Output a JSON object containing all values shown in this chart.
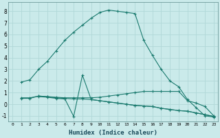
{
  "line1_x": [
    1,
    2,
    3,
    4,
    5,
    6,
    7,
    8,
    9,
    10,
    11,
    12,
    13,
    14,
    15,
    16,
    17,
    18,
    19,
    20,
    21,
    22,
    23
  ],
  "line1_y": [
    1.9,
    2.1,
    3.0,
    3.7,
    4.6,
    5.5,
    6.2,
    6.8,
    7.4,
    7.9,
    8.1,
    8.0,
    7.9,
    7.8,
    5.5,
    4.2,
    3.0,
    2.0,
    1.5,
    0.4,
    -0.3,
    -1.0,
    -1.1
  ],
  "line2_x": [
    1,
    2,
    3,
    4,
    5,
    6,
    7,
    8,
    9,
    10,
    11,
    12,
    13,
    14,
    15,
    16,
    17,
    18,
    19,
    20,
    21,
    22,
    23
  ],
  "line2_y": [
    0.55,
    0.55,
    0.7,
    0.65,
    0.6,
    0.55,
    0.55,
    0.55,
    0.55,
    0.6,
    0.7,
    0.8,
    0.9,
    1.0,
    1.1,
    1.1,
    1.1,
    1.1,
    1.1,
    0.3,
    0.1,
    -0.2,
    -1.0
  ],
  "line3_x": [
    1,
    2,
    3,
    4,
    5,
    6,
    7,
    8,
    9,
    10,
    11,
    12,
    13,
    14,
    15,
    16,
    17,
    18,
    19,
    20,
    21,
    22,
    23
  ],
  "line3_y": [
    0.5,
    0.5,
    0.7,
    0.65,
    0.55,
    0.5,
    0.45,
    0.45,
    0.4,
    0.3,
    0.2,
    0.1,
    0.0,
    -0.1,
    -0.15,
    -0.2,
    -0.35,
    -0.45,
    -0.55,
    -0.6,
    -0.75,
    -0.9,
    -1.05
  ],
  "line4_x": [
    3,
    4,
    5,
    6,
    7,
    8,
    9,
    10,
    11,
    12,
    13,
    14,
    15,
    16,
    17,
    18,
    19,
    20,
    21,
    22,
    23
  ],
  "line4_y": [
    0.65,
    0.6,
    0.5,
    0.45,
    -1.05,
    2.5,
    0.4,
    0.3,
    0.2,
    0.1,
    0.0,
    -0.1,
    -0.15,
    -0.2,
    -0.35,
    -0.45,
    -0.55,
    -0.6,
    -0.75,
    -0.9,
    -1.05
  ],
  "line_color": "#1a7a6e",
  "bg_color": "#caeaea",
  "grid_color": "#b0d8d8",
  "xlabel": "Humidex (Indice chaleur)",
  "xlim": [
    -0.5,
    23.5
  ],
  "ylim": [
    -1.5,
    8.8
  ],
  "yticks": [
    -1,
    0,
    1,
    2,
    3,
    4,
    5,
    6,
    7,
    8
  ],
  "xticks": [
    0,
    1,
    2,
    3,
    4,
    5,
    6,
    7,
    8,
    9,
    10,
    11,
    12,
    13,
    14,
    15,
    16,
    17,
    18,
    19,
    20,
    21,
    22,
    23
  ]
}
